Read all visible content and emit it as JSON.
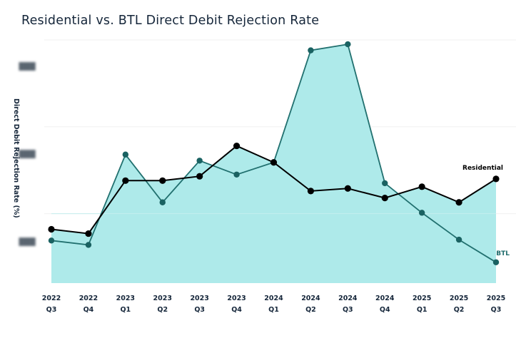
{
  "chart_data": {
    "type": "line",
    "title": "Residential vs. BTL Direct Debit Rejection Rate",
    "xlabel": "",
    "ylabel": "Direct Debit  Rejection Rate (%)",
    "ylim": [
      0,
      2.8
    ],
    "grid": true,
    "gridlines": [
      0.8,
      1.8,
      2.8
    ],
    "yticks": [
      {
        "value": 0.48,
        "label": "███"
      },
      {
        "value": 1.49,
        "label": "███"
      },
      {
        "value": 2.5,
        "label": "███"
      }
    ],
    "categories": [
      [
        "2022",
        "Q3"
      ],
      [
        "2022",
        "Q4"
      ],
      [
        "2023",
        "Q1"
      ],
      [
        "2023",
        "Q2"
      ],
      [
        "2023",
        "Q3"
      ],
      [
        "2023",
        "Q4"
      ],
      [
        "2024",
        "Q1"
      ],
      [
        "2024",
        "Q2"
      ],
      [
        "2024",
        "Q3"
      ],
      [
        "2024",
        "Q4"
      ],
      [
        "2025",
        "Q1"
      ],
      [
        "2025",
        "Q2"
      ],
      [
        "2025",
        "Q3"
      ]
    ],
    "series": [
      {
        "name": "Residential",
        "label": "Residential",
        "color": "#000000",
        "values": [
          0.62,
          0.57,
          1.18,
          1.18,
          1.23,
          1.58,
          1.39,
          1.06,
          1.09,
          0.98,
          1.11,
          0.93,
          1.2
        ]
      },
      {
        "name": "BTL",
        "label": "BTL",
        "color": "#1f6b6b",
        "values": [
          0.49,
          0.44,
          1.48,
          0.93,
          1.41,
          1.25,
          1.39,
          2.68,
          2.75,
          1.15,
          0.81,
          0.5,
          0.24
        ]
      }
    ],
    "fill_color": "#aeeaea",
    "annotations": [
      "Residential",
      "BTL"
    ]
  }
}
